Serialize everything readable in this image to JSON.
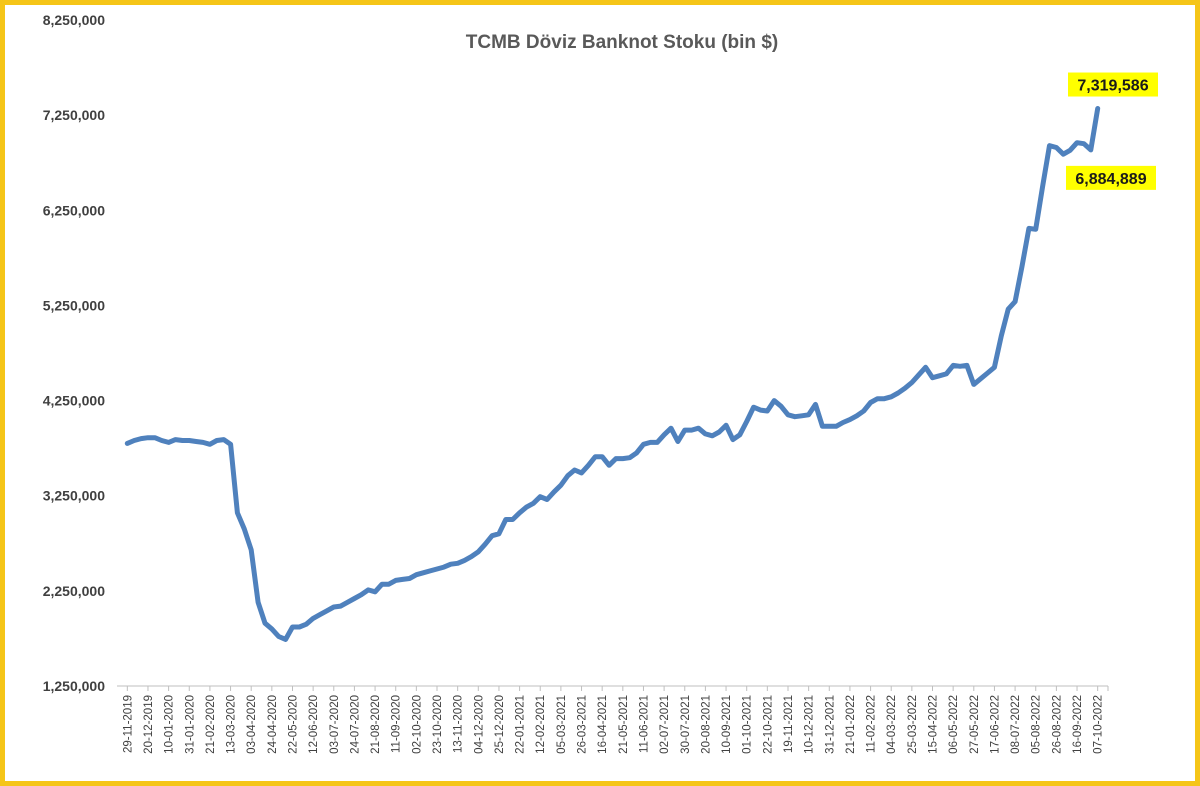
{
  "chart_data": {
    "type": "line",
    "title": "TCMB Döviz Banknot Stoku (bin $)",
    "xlabel": "",
    "ylabel": "",
    "ylim": [
      1250000,
      8250000
    ],
    "y_ticks": [
      "1,250,000",
      "2,250,000",
      "3,250,000",
      "4,250,000",
      "5,250,000",
      "6,250,000",
      "7,250,000",
      "8,250,000"
    ],
    "grid": false,
    "legend": "none",
    "line_color": "#4f81bd",
    "x_tick_labels": [
      "29-11-2019",
      "20-12-2019",
      "10-01-2020",
      "31-01-2020",
      "21-02-2020",
      "13-03-2020",
      "03-04-2020",
      "24-04-2020",
      "22-05-2020",
      "12-06-2020",
      "03-07-2020",
      "24-07-2020",
      "21-08-2020",
      "11-09-2020",
      "02-10-2020",
      "23-10-2020",
      "13-11-2020",
      "04-12-2020",
      "25-12-2020",
      "22-01-2021",
      "12-02-2021",
      "05-03-2021",
      "26-03-2021",
      "16-04-2021",
      "21-05-2021",
      "11-06-2021",
      "02-07-2021",
      "30-07-2021",
      "20-08-2021",
      "10-09-2021",
      "01-10-2021",
      "22-10-2021",
      "19-11-2021",
      "10-12-2021",
      "31-12-2021",
      "21-01-2022",
      "11-02-2022",
      "04-03-2022",
      "25-03-2022",
      "15-04-2022",
      "06-05-2022",
      "27-05-2022",
      "17-06-2022",
      "08-07-2022",
      "05-08-2022",
      "26-08-2022",
      "16-09-2022",
      "07-10-2022"
    ],
    "series": [
      {
        "values": [
          3800000,
          3830000,
          3850000,
          3860000,
          3860000,
          3830000,
          3810000,
          3840000,
          3830000,
          3830000,
          3820000,
          3810000,
          3790000,
          3830000,
          3840000,
          3790000,
          3070000,
          2900000,
          2680000,
          2130000,
          1910000,
          1850000,
          1770000,
          1740000,
          1870000,
          1870000,
          1900000,
          1960000,
          2000000,
          2040000,
          2080000,
          2090000,
          2130000,
          2170000,
          2210000,
          2260000,
          2240000,
          2320000,
          2320000,
          2360000,
          2370000,
          2380000,
          2420000,
          2440000,
          2460000,
          2480000,
          2500000,
          2530000,
          2540000,
          2570000,
          2610000,
          2660000,
          2740000,
          2830000,
          2850000,
          3000000,
          3000000,
          3070000,
          3130000,
          3170000,
          3240000,
          3210000,
          3290000,
          3360000,
          3460000,
          3520000,
          3490000,
          3570000,
          3660000,
          3660000,
          3570000,
          3640000,
          3640000,
          3650000,
          3700000,
          3790000,
          3810000,
          3810000,
          3890000,
          3960000,
          3820000,
          3940000,
          3940000,
          3960000,
          3900000,
          3880000,
          3920000,
          3990000,
          3840000,
          3890000,
          4030000,
          4180000,
          4150000,
          4140000,
          4250000,
          4190000,
          4100000,
          4080000,
          4090000,
          4100000,
          4210000,
          3980000,
          3980000,
          3980000,
          4020000,
          4050000,
          4090000,
          4140000,
          4230000,
          4270000,
          4270000,
          4290000,
          4330000,
          4380000,
          4440000,
          4520000,
          4600000,
          4490000,
          4510000,
          4530000,
          4620000,
          4610000,
          4620000,
          4420000,
          4480000,
          4540000,
          4600000,
          4930000,
          5210000,
          5290000,
          5660000,
          6060000,
          6050000,
          6500000,
          6930000,
          6910000,
          6840000,
          6880000,
          6960000,
          6950000,
          6884889,
          7319586
        ]
      }
    ],
    "annotations": [
      {
        "label": "7,319,586",
        "value": 7319586
      },
      {
        "label": "6,884,889",
        "value": 6884889
      }
    ],
    "callout_bg": "#ffff00"
  }
}
